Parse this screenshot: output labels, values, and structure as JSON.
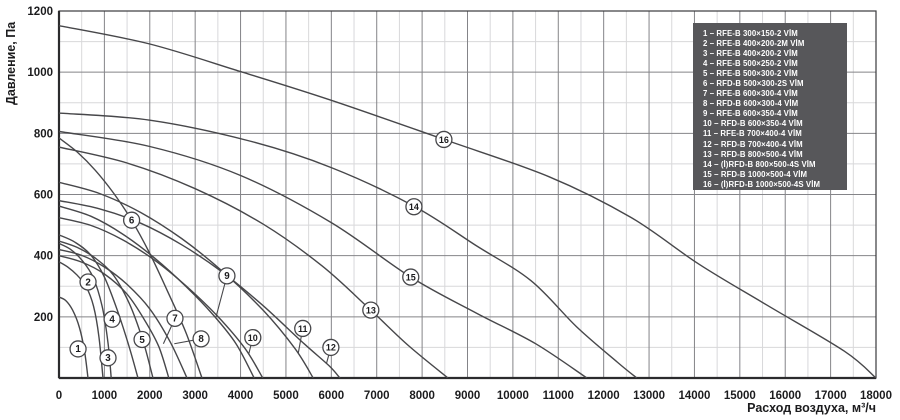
{
  "chart_data": {
    "type": "line",
    "title": "",
    "xlabel": "Расход воздуха, м³/ч",
    "ylabel": "Давление, Па",
    "xlim": [
      0,
      18000
    ],
    "ylim": [
      0,
      1200
    ],
    "x_major_step": 1000,
    "x_minor_step": 500,
    "y_major_step": 200,
    "y_minor_step": 100,
    "grid": "on",
    "legend_position": "top-right",
    "x_tick_labels": [
      "0",
      "1000",
      "2000",
      "3000",
      "4000",
      "5000",
      "6000",
      "7000",
      "8000",
      "9000",
      "10000",
      "11000",
      "12000",
      "13000",
      "14000",
      "15000",
      "16000",
      "17000",
      "18000"
    ],
    "y_tick_labels": [
      "200",
      "400",
      "600",
      "800",
      "1000",
      "1200"
    ],
    "series": [
      {
        "id": "1",
        "name": "RFE-B 300×150-2 VİM",
        "points": [
          [
            0,
            265
          ],
          [
            150,
            253
          ],
          [
            300,
            222
          ],
          [
            450,
            165
          ],
          [
            560,
            90
          ],
          [
            640,
            0
          ]
        ],
        "label_at": [
          420,
          95
        ]
      },
      {
        "id": "2",
        "name": "RFE-B 400×200-2M VİM",
        "points": [
          [
            0,
            380
          ],
          [
            200,
            362
          ],
          [
            400,
            336
          ],
          [
            600,
            298
          ],
          [
            760,
            235
          ],
          [
            880,
            135
          ],
          [
            970,
            0
          ]
        ],
        "label_at": [
          640,
          314
        ]
      },
      {
        "id": "3",
        "name": "RFE-B 400×200-2 VİM",
        "points": [
          [
            0,
            440
          ],
          [
            250,
            421
          ],
          [
            500,
            386
          ],
          [
            750,
            330
          ],
          [
            950,
            235
          ],
          [
            1080,
            115
          ],
          [
            1150,
            0
          ]
        ],
        "label_at": [
          1080,
          66
        ]
      },
      {
        "id": "4",
        "name": "RFE-B 500×250-2 VİM",
        "points": [
          [
            0,
            468
          ],
          [
            350,
            444
          ],
          [
            700,
            402
          ],
          [
            1000,
            330
          ],
          [
            1300,
            215
          ],
          [
            1560,
            95
          ],
          [
            1740,
            0
          ]
        ],
        "label_at": [
          1170,
          192
        ]
      },
      {
        "id": "5",
        "name": "RFE-B 500×300-2 VİM",
        "points": [
          [
            0,
            448
          ],
          [
            400,
            427
          ],
          [
            800,
            392
          ],
          [
            1200,
            336
          ],
          [
            1550,
            243
          ],
          [
            1850,
            122
          ],
          [
            2070,
            0
          ]
        ],
        "label_at": [
          1830,
          126
        ]
      },
      {
        "id": "6",
        "name": "RFD-B 500×300-2S VİM",
        "points": [
          [
            0,
            785
          ],
          [
            400,
            739
          ],
          [
            800,
            679
          ],
          [
            1200,
            605
          ],
          [
            1600,
            516
          ],
          [
            2000,
            407
          ],
          [
            2400,
            281
          ],
          [
            2800,
            147
          ],
          [
            3150,
            0
          ]
        ],
        "label_at": [
          1600,
          516
        ]
      },
      {
        "id": "7",
        "name": "RFE-B 600×300-4 VİM",
        "points": [
          [
            0,
            400
          ],
          [
            500,
            379
          ],
          [
            1000,
            340
          ],
          [
            1500,
            274
          ],
          [
            1900,
            186
          ],
          [
            2200,
            102
          ],
          [
            2420,
            0
          ]
        ],
        "label_at": [
          2555,
          195
        ],
        "leader_to": [
          2300,
          112
        ]
      },
      {
        "id": "8",
        "name": "RFD-B 600×300-4 VİM",
        "points": [
          [
            0,
            420
          ],
          [
            500,
            401
          ],
          [
            1000,
            363
          ],
          [
            1500,
            306
          ],
          [
            2000,
            226
          ],
          [
            2450,
            118
          ],
          [
            2820,
            0
          ]
        ],
        "label_at": [
          3130,
          128
        ],
        "leader_to": [
          2540,
          112
        ]
      },
      {
        "id": "9",
        "name": "RFE-B 600×350-4 VİM",
        "points": [
          [
            0,
            562
          ],
          [
            700,
            529
          ],
          [
            1400,
            471
          ],
          [
            2100,
            393
          ],
          [
            2800,
            299
          ],
          [
            3400,
            206
          ],
          [
            3900,
            112
          ],
          [
            4300,
            0
          ]
        ],
        "label_at": [
          3700,
          334
        ],
        "leader_to": [
          3460,
          200
        ]
      },
      {
        "id": "10",
        "name": "RFD-B 600×350-4 VİM",
        "points": [
          [
            0,
            524
          ],
          [
            700,
            499
          ],
          [
            1400,
            452
          ],
          [
            2100,
            386
          ],
          [
            2800,
            301
          ],
          [
            3500,
            201
          ],
          [
            4100,
            96
          ],
          [
            4490,
            0
          ]
        ],
        "label_at": [
          4270,
          132
        ],
        "leader_to": [
          4180,
          78
        ]
      },
      {
        "id": "11",
        "name": "RFE-B 700×400-4 VİM",
        "points": [
          [
            0,
            640
          ],
          [
            900,
            603
          ],
          [
            1800,
            541
          ],
          [
            2700,
            456
          ],
          [
            3600,
            349
          ],
          [
            4500,
            221
          ],
          [
            5200,
            96
          ],
          [
            5600,
            0
          ]
        ],
        "label_at": [
          5370,
          162
        ],
        "leader_to": [
          5270,
          80
        ]
      },
      {
        "id": "12",
        "name": "RFD-B 700×400-4 VİM",
        "points": [
          [
            0,
            580
          ],
          [
            900,
            553
          ],
          [
            1800,
            506
          ],
          [
            2700,
            436
          ],
          [
            3600,
            346
          ],
          [
            4500,
            236
          ],
          [
            5400,
            112
          ],
          [
            5950,
            40
          ],
          [
            6190,
            0
          ]
        ],
        "label_at": [
          5990,
          100
        ],
        "leader_to": [
          5890,
          46
        ]
      },
      {
        "id": "13",
        "name": "RFD-B 800×500-4 VİM",
        "points": [
          [
            0,
            755
          ],
          [
            1500,
            703
          ],
          [
            3000,
            619
          ],
          [
            4500,
            503
          ],
          [
            5800,
            366
          ],
          [
            6870,
            222
          ],
          [
            7700,
            106
          ],
          [
            8570,
            0
          ]
        ],
        "label_at": [
          6870,
          222
        ]
      },
      {
        "id": "14",
        "name": "(İ)RFD-B 800×500-4S VİM",
        "points": [
          [
            0,
            866
          ],
          [
            2000,
            843
          ],
          [
            4200,
            775
          ],
          [
            6000,
            688
          ],
          [
            7820,
            562
          ],
          [
            9200,
            432
          ],
          [
            10400,
            318
          ],
          [
            11400,
            168
          ],
          [
            12300,
            52
          ],
          [
            12730,
            0
          ]
        ],
        "label_at": [
          7820,
          560
        ]
      },
      {
        "id": "15",
        "name": "RFD-B 1000×500-4 VİM",
        "points": [
          [
            0,
            806
          ],
          [
            2000,
            757
          ],
          [
            4000,
            662
          ],
          [
            6000,
            508
          ],
          [
            7750,
            330
          ],
          [
            9200,
            212
          ],
          [
            10500,
            112
          ],
          [
            11630,
            0
          ]
        ],
        "label_at": [
          7750,
          330
        ]
      },
      {
        "id": "16",
        "name": "(İ)RFD-B 1000×500-4S VİM",
        "points": [
          [
            0,
            1152
          ],
          [
            2000,
            1092
          ],
          [
            4000,
            1002
          ],
          [
            6000,
            908
          ],
          [
            8480,
            780
          ],
          [
            10800,
            658
          ],
          [
            12600,
            525
          ],
          [
            14100,
            372
          ],
          [
            15600,
            238
          ],
          [
            17300,
            88
          ],
          [
            18000,
            0
          ]
        ],
        "label_at": [
          8480,
          780
        ]
      }
    ],
    "colors": {
      "curve": "#47474a",
      "grid_major": "#848488",
      "grid_minor": "#d8d8da",
      "frame": "#3a3a3c",
      "axis": "#2b2b2d",
      "text": "#1c1c1e",
      "legend_bg": "#57575a",
      "legend_text": "#ffffff",
      "marker_fill": "#ffffff"
    }
  }
}
